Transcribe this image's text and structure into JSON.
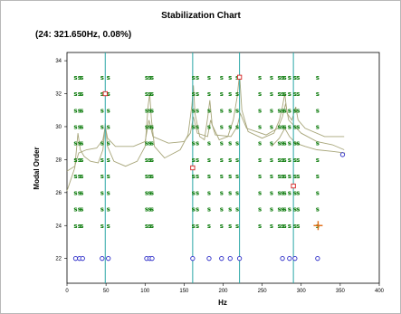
{
  "chart_data": {
    "type": "scatter",
    "title": "Stabilization Chart",
    "annotation": "(24: 321.650Hz, 0.08%)",
    "xlabel": "Hz",
    "ylabel": "Modal Order",
    "xlim": [
      0,
      400
    ],
    "ylim": [
      20.5,
      34.5
    ],
    "xticks": [
      0,
      50,
      100,
      150,
      200,
      250,
      300,
      350,
      400
    ],
    "yticks": [
      22,
      24,
      26,
      28,
      30,
      32,
      34
    ],
    "tick_labels_x": [
      "0",
      "50",
      "100",
      "150",
      "200",
      "250",
      "300",
      "350",
      "400"
    ],
    "tick_labels_y": [
      "22",
      "24",
      "26",
      "28",
      "30",
      "32",
      "34"
    ],
    "grid": false,
    "marker_symbol": "s",
    "colors": {
      "stable": "#0a7a0a",
      "vertical_lines": "#2aa6a6",
      "curves": "#a8a67a",
      "frequency_only": "#2b2bc8",
      "unstable": "#d42020",
      "selected": "#e06a10"
    },
    "vertical_lines_hz": [
      49,
      161,
      221,
      290
    ],
    "stable_columns_hz": [
      11,
      16,
      19,
      45,
      53,
      102,
      106,
      109,
      162,
      167,
      182,
      198,
      209,
      218,
      247,
      262,
      272,
      276,
      279,
      285,
      292,
      296,
      321
    ],
    "stable_orders": [
      24,
      25,
      26,
      27,
      28,
      29,
      30,
      31,
      32,
      33
    ],
    "circles_order_22_hz": [
      11,
      16,
      20,
      45,
      53,
      102,
      106,
      109,
      161,
      182,
      198,
      209,
      221,
      276,
      285,
      292,
      321
    ],
    "circles_extra": [
      {
        "x": 353,
        "y": 28.3
      }
    ],
    "unstable_points": [
      {
        "x": 49,
        "y": 32
      },
      {
        "x": 221,
        "y": 33
      },
      {
        "x": 161,
        "y": 27.5
      },
      {
        "x": 290,
        "y": 26.4
      }
    ],
    "selected_point": {
      "x": 321.65,
      "y": 24
    },
    "curves": [
      [
        [
          0,
          26.1
        ],
        [
          5,
          26.8
        ],
        [
          10,
          27.5
        ],
        [
          14,
          29.6
        ],
        [
          17,
          28.6
        ],
        [
          22,
          28.2
        ],
        [
          30,
          27.9
        ],
        [
          40,
          27.8
        ],
        [
          46,
          28.6
        ],
        [
          49,
          30.2
        ],
        [
          52,
          28.8
        ],
        [
          60,
          27.9
        ],
        [
          75,
          27.6
        ],
        [
          90,
          27.9
        ],
        [
          100,
          28.8
        ],
        [
          104,
          31.3
        ],
        [
          106,
          32
        ],
        [
          108,
          30.5
        ],
        [
          112,
          28.8
        ],
        [
          125,
          28.1
        ],
        [
          145,
          28.6
        ],
        [
          155,
          29.5
        ],
        [
          160,
          31.3
        ],
        [
          162,
          32.5
        ],
        [
          164,
          30.8
        ],
        [
          170,
          29.4
        ],
        [
          176,
          29.2
        ],
        [
          180,
          30.5
        ],
        [
          183,
          31.6
        ],
        [
          186,
          30.1
        ],
        [
          195,
          29.2
        ],
        [
          206,
          29.4
        ],
        [
          213,
          30.4
        ],
        [
          218,
          31.8
        ],
        [
          221,
          33.2
        ],
        [
          224,
          31
        ],
        [
          232,
          29.7
        ],
        [
          250,
          29.3
        ],
        [
          265,
          29.6
        ],
        [
          272,
          30.4
        ],
        [
          276,
          31.2
        ],
        [
          279,
          32
        ],
        [
          282,
          30.8
        ],
        [
          288,
          30.4
        ],
        [
          293,
          31.2
        ],
        [
          296,
          30.4
        ],
        [
          305,
          29.9
        ],
        [
          330,
          29.4
        ],
        [
          355,
          29.4
        ]
      ],
      [
        [
          0,
          27.3
        ],
        [
          10,
          27.6
        ],
        [
          15,
          28.4
        ],
        [
          25,
          28.6
        ],
        [
          38,
          28.7
        ],
        [
          46,
          29.2
        ],
        [
          49,
          30
        ],
        [
          52,
          29.3
        ],
        [
          62,
          28.8
        ],
        [
          85,
          28.8
        ],
        [
          100,
          29.1
        ],
        [
          105,
          30.4
        ],
        [
          110,
          29.4
        ],
        [
          130,
          29
        ],
        [
          150,
          29.1
        ],
        [
          158,
          29.6
        ],
        [
          162,
          30.6
        ],
        [
          167,
          29.6
        ],
        [
          180,
          29.4
        ],
        [
          184,
          30.4
        ],
        [
          190,
          29.5
        ],
        [
          210,
          29.4
        ],
        [
          218,
          30
        ],
        [
          222,
          30.8
        ],
        [
          230,
          29.9
        ],
        [
          255,
          29.5
        ],
        [
          270,
          29.9
        ],
        [
          276,
          30.6
        ],
        [
          280,
          31.4
        ],
        [
          284,
          30.4
        ],
        [
          292,
          30
        ],
        [
          300,
          29.6
        ],
        [
          320,
          29.1
        ],
        [
          340,
          28.9
        ],
        [
          355,
          28.6
        ]
      ],
      [
        [
          262,
          28.8
        ],
        [
          272,
          29.3
        ],
        [
          279,
          29.9
        ],
        [
          285,
          29.4
        ],
        [
          293,
          29
        ],
        [
          305,
          28.8
        ],
        [
          320,
          28.6
        ],
        [
          340,
          28.5
        ],
        [
          356,
          28.4
        ]
      ]
    ]
  }
}
